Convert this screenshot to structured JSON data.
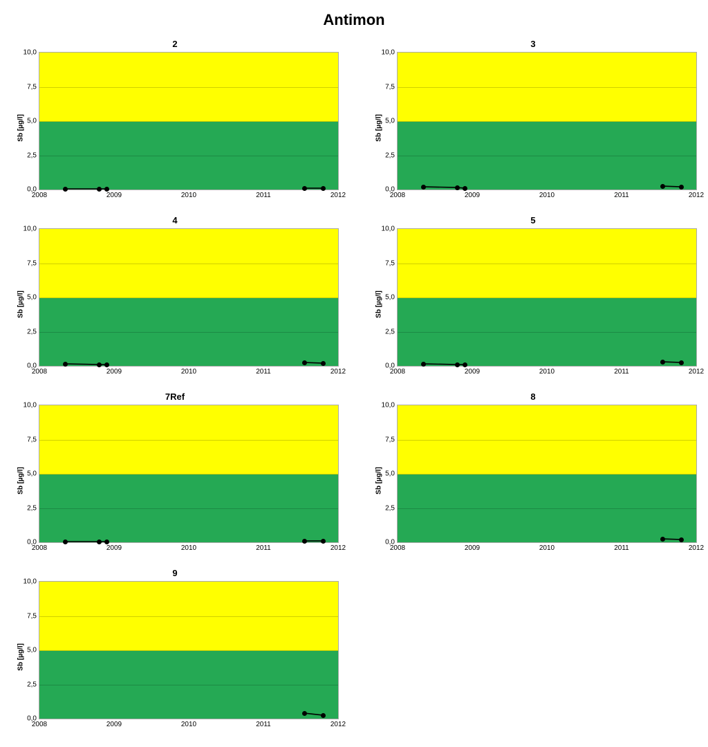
{
  "title": "Antimon",
  "ylabel": "Sb [µg/l]",
  "axes": {
    "xlim": [
      2008,
      2012
    ],
    "ylim": [
      0,
      10
    ],
    "xticks": [
      2008,
      2009,
      2010,
      2011,
      2012
    ],
    "yticks": [
      0.0,
      2.5,
      5.0,
      7.5,
      10.0
    ],
    "ytick_labels": [
      "0,0",
      "2,5",
      "5,0",
      "7,5",
      "10,0"
    ]
  },
  "style": {
    "background_color": "#ffffff",
    "band_green_color": "#25a954",
    "band_yellow_color": "#ffff00",
    "grid_color_on_yellow": "#d0d000",
    "grid_color_on_green": "#1c8a44",
    "line_color": "#000000",
    "marker_color": "#000000",
    "tick_font_size": 10,
    "title_font_size": 13,
    "main_title_font_size": 22,
    "ylabel_font_size": 10,
    "green_band_yrange": [
      0,
      5
    ],
    "yellow_band_yrange": [
      5,
      10
    ],
    "marker_radius": 3.5,
    "line_width": 1.6
  },
  "panels": [
    {
      "id": "2",
      "series": [
        {
          "points": [
            [
              2008.35,
              0.05
            ],
            [
              2008.8,
              0.05
            ],
            [
              2008.9,
              0.05
            ]
          ]
        },
        {
          "points": [
            [
              2011.55,
              0.1
            ],
            [
              2011.8,
              0.1
            ]
          ]
        }
      ]
    },
    {
      "id": "3",
      "series": [
        {
          "points": [
            [
              2008.35,
              0.2
            ],
            [
              2008.8,
              0.15
            ],
            [
              2008.9,
              0.1
            ]
          ]
        },
        {
          "points": [
            [
              2011.55,
              0.25
            ],
            [
              2011.8,
              0.2
            ]
          ]
        }
      ]
    },
    {
      "id": "4",
      "series": [
        {
          "points": [
            [
              2008.35,
              0.15
            ],
            [
              2008.8,
              0.1
            ],
            [
              2008.9,
              0.1
            ]
          ]
        },
        {
          "points": [
            [
              2011.55,
              0.25
            ],
            [
              2011.8,
              0.2
            ]
          ]
        }
      ]
    },
    {
      "id": "5",
      "series": [
        {
          "points": [
            [
              2008.35,
              0.15
            ],
            [
              2008.8,
              0.1
            ],
            [
              2008.9,
              0.1
            ]
          ]
        },
        {
          "points": [
            [
              2011.55,
              0.3
            ],
            [
              2011.8,
              0.25
            ]
          ]
        }
      ]
    },
    {
      "id": "7Ref",
      "series": [
        {
          "points": [
            [
              2008.35,
              0.05
            ],
            [
              2008.8,
              0.05
            ],
            [
              2008.9,
              0.05
            ]
          ]
        },
        {
          "points": [
            [
              2011.55,
              0.1
            ],
            [
              2011.8,
              0.1
            ]
          ]
        }
      ]
    },
    {
      "id": "8",
      "series": [
        {
          "points": [
            [
              2011.55,
              0.25
            ],
            [
              2011.8,
              0.2
            ]
          ]
        }
      ]
    },
    {
      "id": "9",
      "series": [
        {
          "points": [
            [
              2011.55,
              0.4
            ],
            [
              2011.8,
              0.25
            ]
          ]
        }
      ]
    }
  ]
}
